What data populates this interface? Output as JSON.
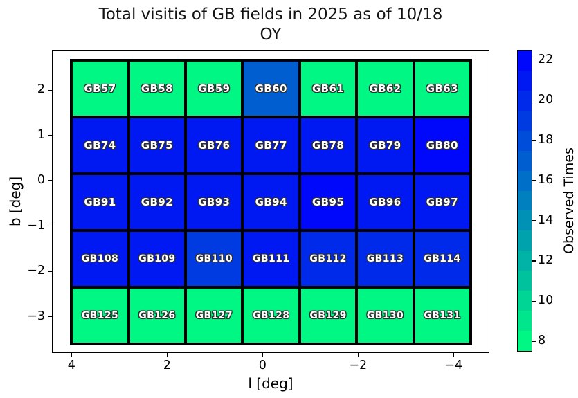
{
  "title": {
    "line1": "Total visitis of GB fields in 2025 as of 10/18",
    "line2": "OY"
  },
  "chart_data": {
    "type": "heatmap",
    "title": "Total visitis of GB fields in 2025 as of 10/18",
    "subtitle": "OY",
    "xlabel": "l [deg]",
    "ylabel": "b [deg]",
    "colorbar_label": "Observed Times",
    "colormap": "winter_r",
    "vmin": 7.5,
    "vmax": 22.5,
    "colorbar_levels": 15,
    "xlim": [
      4.41,
      -4.75
    ],
    "ylim_top": 2.89,
    "ylim_bottom": -3.8,
    "x_axis_inverted": true,
    "grid_extent": {
      "l_left": 4.0,
      "l_right": -4.36,
      "b_top": 2.66,
      "b_bottom": -3.6,
      "cols": 7,
      "rows": 5
    },
    "x_ticks": [
      {
        "label": "4",
        "value": 4
      },
      {
        "label": "2",
        "value": 2
      },
      {
        "label": "0",
        "value": 0
      },
      {
        "label": "−2",
        "value": -2
      },
      {
        "label": "−4",
        "value": -4
      }
    ],
    "y_ticks": [
      {
        "label": "2",
        "value": 2
      },
      {
        "label": "1",
        "value": 1
      },
      {
        "label": "0",
        "value": 0
      },
      {
        "label": "−1",
        "value": -1
      },
      {
        "label": "−2",
        "value": -2
      },
      {
        "label": "−3",
        "value": -3
      }
    ],
    "colorbar_ticks": [
      {
        "label": "22",
        "value": 22
      },
      {
        "label": "20",
        "value": 20
      },
      {
        "label": "18",
        "value": 18
      },
      {
        "label": "16",
        "value": 16
      },
      {
        "label": "14",
        "value": 14
      },
      {
        "label": "12",
        "value": 12
      },
      {
        "label": "10",
        "value": 10
      },
      {
        "label": "8",
        "value": 8
      }
    ],
    "rows": [
      {
        "labels": [
          "GB57",
          "GB58",
          "GB59",
          "GB60",
          "GB61",
          "GB62",
          "GB63"
        ],
        "values": [
          8,
          8,
          8,
          17,
          8,
          8,
          8
        ]
      },
      {
        "labels": [
          "GB74",
          "GB75",
          "GB76",
          "GB77",
          "GB78",
          "GB79",
          "GB80"
        ],
        "values": [
          21,
          21,
          21,
          21,
          21,
          21,
          22
        ]
      },
      {
        "labels": [
          "GB91",
          "GB92",
          "GB93",
          "GB94",
          "GB95",
          "GB96",
          "GB97"
        ],
        "values": [
          21,
          21,
          21,
          21,
          22,
          21,
          21
        ]
      },
      {
        "labels": [
          "GB108",
          "GB109",
          "GB110",
          "GB111",
          "GB112",
          "GB113",
          "GB114"
        ],
        "values": [
          21,
          21,
          19,
          21,
          20,
          20,
          20
        ]
      },
      {
        "labels": [
          "GB125",
          "GB126",
          "GB127",
          "GB128",
          "GB129",
          "GB130",
          "GB131"
        ],
        "values": [
          8,
          8,
          8,
          8,
          8,
          8,
          8
        ]
      }
    ],
    "colors": {
      "min_color": "#00FF80",
      "max_color": "#0000FF",
      "edge_color": "#000000"
    }
  }
}
